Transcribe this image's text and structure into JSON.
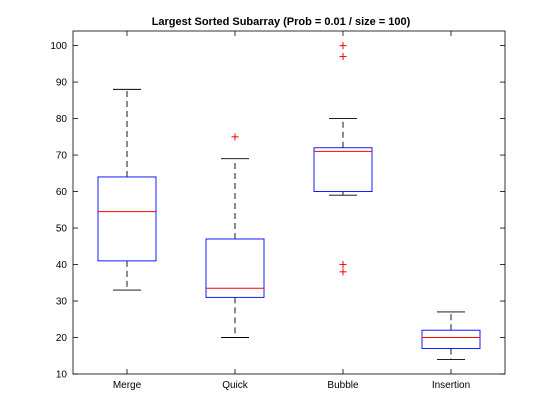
{
  "chart_data": {
    "type": "box",
    "title": "Largest Sorted Subarray (Prob = 0.01 / size = 100)",
    "xlabel": "",
    "ylabel": "",
    "ylim": [
      10,
      104
    ],
    "yticks": [
      10,
      20,
      30,
      40,
      50,
      60,
      70,
      80,
      90,
      100
    ],
    "grid": false,
    "categories": [
      "Merge",
      "Quick",
      "Bubble",
      "Insertion"
    ],
    "boxes": [
      {
        "category": "Merge",
        "whisker_low": 33,
        "q1": 41,
        "median": 54.5,
        "q3": 64,
        "whisker_high": 88,
        "outliers": []
      },
      {
        "category": "Quick",
        "whisker_low": 20,
        "q1": 31,
        "median": 33.5,
        "q3": 47,
        "whisker_high": 69,
        "outliers": [
          75
        ]
      },
      {
        "category": "Bubble",
        "whisker_low": 59,
        "q1": 60,
        "median": 71,
        "q3": 72,
        "whisker_high": 80,
        "outliers": [
          38,
          40,
          97,
          100
        ]
      },
      {
        "category": "Insertion",
        "whisker_low": 14,
        "q1": 17,
        "median": 20,
        "q3": 22,
        "whisker_high": 27,
        "outliers": []
      }
    ],
    "colors": {
      "box": "#0000ff",
      "median": "#ff0000",
      "whisker": "#000000",
      "outlier": "#ff0000",
      "axes": "#000000"
    }
  }
}
